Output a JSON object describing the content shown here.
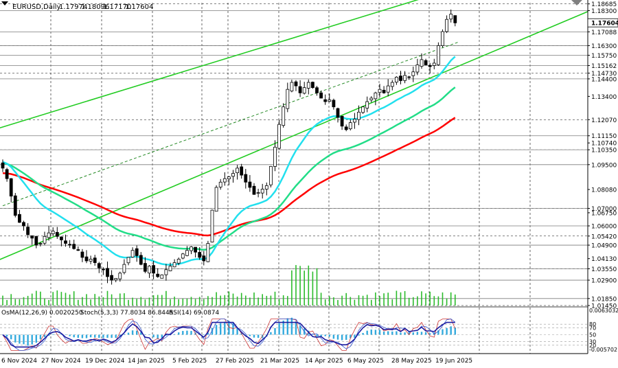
{
  "header": {
    "symbol": "EURUSD,Daily",
    "ohlc": [
      "1.17974",
      "1.18096",
      "1.17170",
      "1.17604"
    ]
  },
  "chart_data": {
    "type": "candlestick",
    "title": "EURUSD,Daily",
    "price_range": [
      1.0145,
      1.1875
    ],
    "price_ticks": [
      {
        "value": 1.18685,
        "label": "1.18685"
      },
      {
        "value": 1.183,
        "label": "1.18300"
      },
      {
        "value": 1.17088,
        "label": "1.17088"
      },
      {
        "value": 1.163,
        "label": "1.16300"
      },
      {
        "value": 1.1575,
        "label": "1.15750"
      },
      {
        "value": 1.1516,
        "label": "1.15162"
      },
      {
        "value": 1.1473,
        "label": "1.14730"
      },
      {
        "value": 1.144,
        "label": "1.14400"
      },
      {
        "value": 1.134,
        "label": "1.13400"
      },
      {
        "value": 1.1207,
        "label": "1.12070"
      },
      {
        "value": 1.1115,
        "label": "1.11150"
      },
      {
        "value": 1.1074,
        "label": "1.10740"
      },
      {
        "value": 1.1035,
        "label": "1.10350"
      },
      {
        "value": 1.095,
        "label": "1.09500"
      },
      {
        "value": 1.0808,
        "label": "1.08080"
      },
      {
        "value": 1.07,
        "label": "1.07000"
      },
      {
        "value": 1.0675,
        "label": "1.06750"
      },
      {
        "value": 1.06,
        "label": "1.06000"
      },
      {
        "value": 1.0542,
        "label": "1.05420"
      },
      {
        "value": 1.049,
        "label": "1.04900"
      },
      {
        "value": 1.0413,
        "label": "1.04130"
      },
      {
        "value": 1.0355,
        "label": "1.03550"
      },
      {
        "value": 1.029,
        "label": "1.02900"
      },
      {
        "value": 1.0185,
        "label": "1.01850"
      },
      {
        "value": 1.0145,
        "label": "1.01450"
      }
    ],
    "current_price": {
      "value": 1.17604,
      "label": "1.17604"
    },
    "horizontal_levels": [
      1.183,
      1.17088,
      1.163,
      1.1575,
      1.1516,
      1.144,
      1.1115,
      1.1035,
      1.095,
      1.07,
      1.06,
      1.049,
      1.0355,
      1.029,
      1.0185
    ],
    "x_axis_labels": [
      "6 Nov 2024",
      "27 Nov 2024",
      "19 Dec 2024",
      "14 Jan 2025",
      "5 Feb 2025",
      "27 Feb 2025",
      "21 Mar 2025",
      "14 Apr 2025",
      "6 May 2025",
      "28 May 2025",
      "19 Jun 2025"
    ],
    "close_series": [
      1.093,
      1.087,
      1.077,
      1.066,
      1.062,
      1.06,
      1.055,
      1.053,
      1.049,
      1.05,
      1.054,
      1.056,
      1.057,
      1.054,
      1.052,
      1.05,
      1.049,
      1.047,
      1.046,
      1.042,
      1.04,
      1.041,
      1.039,
      1.036,
      1.035,
      1.031,
      1.029,
      1.03,
      1.033,
      1.038,
      1.042,
      1.046,
      1.043,
      1.038,
      1.034,
      1.037,
      1.033,
      1.031,
      1.032,
      1.035,
      1.037,
      1.039,
      1.041,
      1.044,
      1.046,
      1.048,
      1.045,
      1.042,
      1.04,
      1.05,
      1.069,
      1.082,
      1.085,
      1.087,
      1.088,
      1.09,
      1.093,
      1.089,
      1.085,
      1.082,
      1.078,
      1.079,
      1.081,
      1.083,
      1.094,
      1.105,
      1.118,
      1.128,
      1.138,
      1.142,
      1.14,
      1.136,
      1.139,
      1.142,
      1.139,
      1.136,
      1.133,
      1.131,
      1.132,
      1.128,
      1.122,
      1.117,
      1.115,
      1.119,
      1.121,
      1.125,
      1.128,
      1.131,
      1.133,
      1.136,
      1.138,
      1.136,
      1.14,
      1.142,
      1.145,
      1.143,
      1.146,
      1.145,
      1.148,
      1.152,
      1.155,
      1.152,
      1.151,
      1.153,
      1.163,
      1.171,
      1.178,
      1.181,
      1.176
    ],
    "indicators": [
      {
        "name": "EMA 200",
        "color": "#ff0000"
      },
      {
        "name": "EMA 144",
        "color": "#22dd88"
      },
      {
        "name": "EMA 50",
        "color": "#22e0ee"
      }
    ],
    "channel": {
      "lines": [
        {
          "p1": [
            0,
            1.1165
          ],
          "p2": [
            109,
            1.1965
          ]
        },
        {
          "p1": [
            0,
            1.0415
          ],
          "p2": [
            109,
            1.1515
          ]
        }
      ],
      "mid": {
        "p1": [
          0,
          1.0715
        ],
        "p2": [
          109,
          1.1652
        ]
      }
    },
    "subwindow": {
      "labels": [
        "OsMA(12,26,9) 0.0020250",
        "Stoch(5,3,3) 77.8034 86.8445",
        "RSI(14) 69.0874"
      ],
      "levels": [
        {
          "value": 0.006303,
          "label": "0.0063032"
        },
        {
          "value": 80,
          "label": "80"
        },
        {
          "value": 70,
          "label": "70"
        },
        {
          "value": 50,
          "label": "50"
        },
        {
          "value": 30,
          "label": "30"
        },
        {
          "value": 20,
          "label": "20"
        },
        {
          "value": -0.005702,
          "label": "-0.005702"
        }
      ]
    }
  }
}
